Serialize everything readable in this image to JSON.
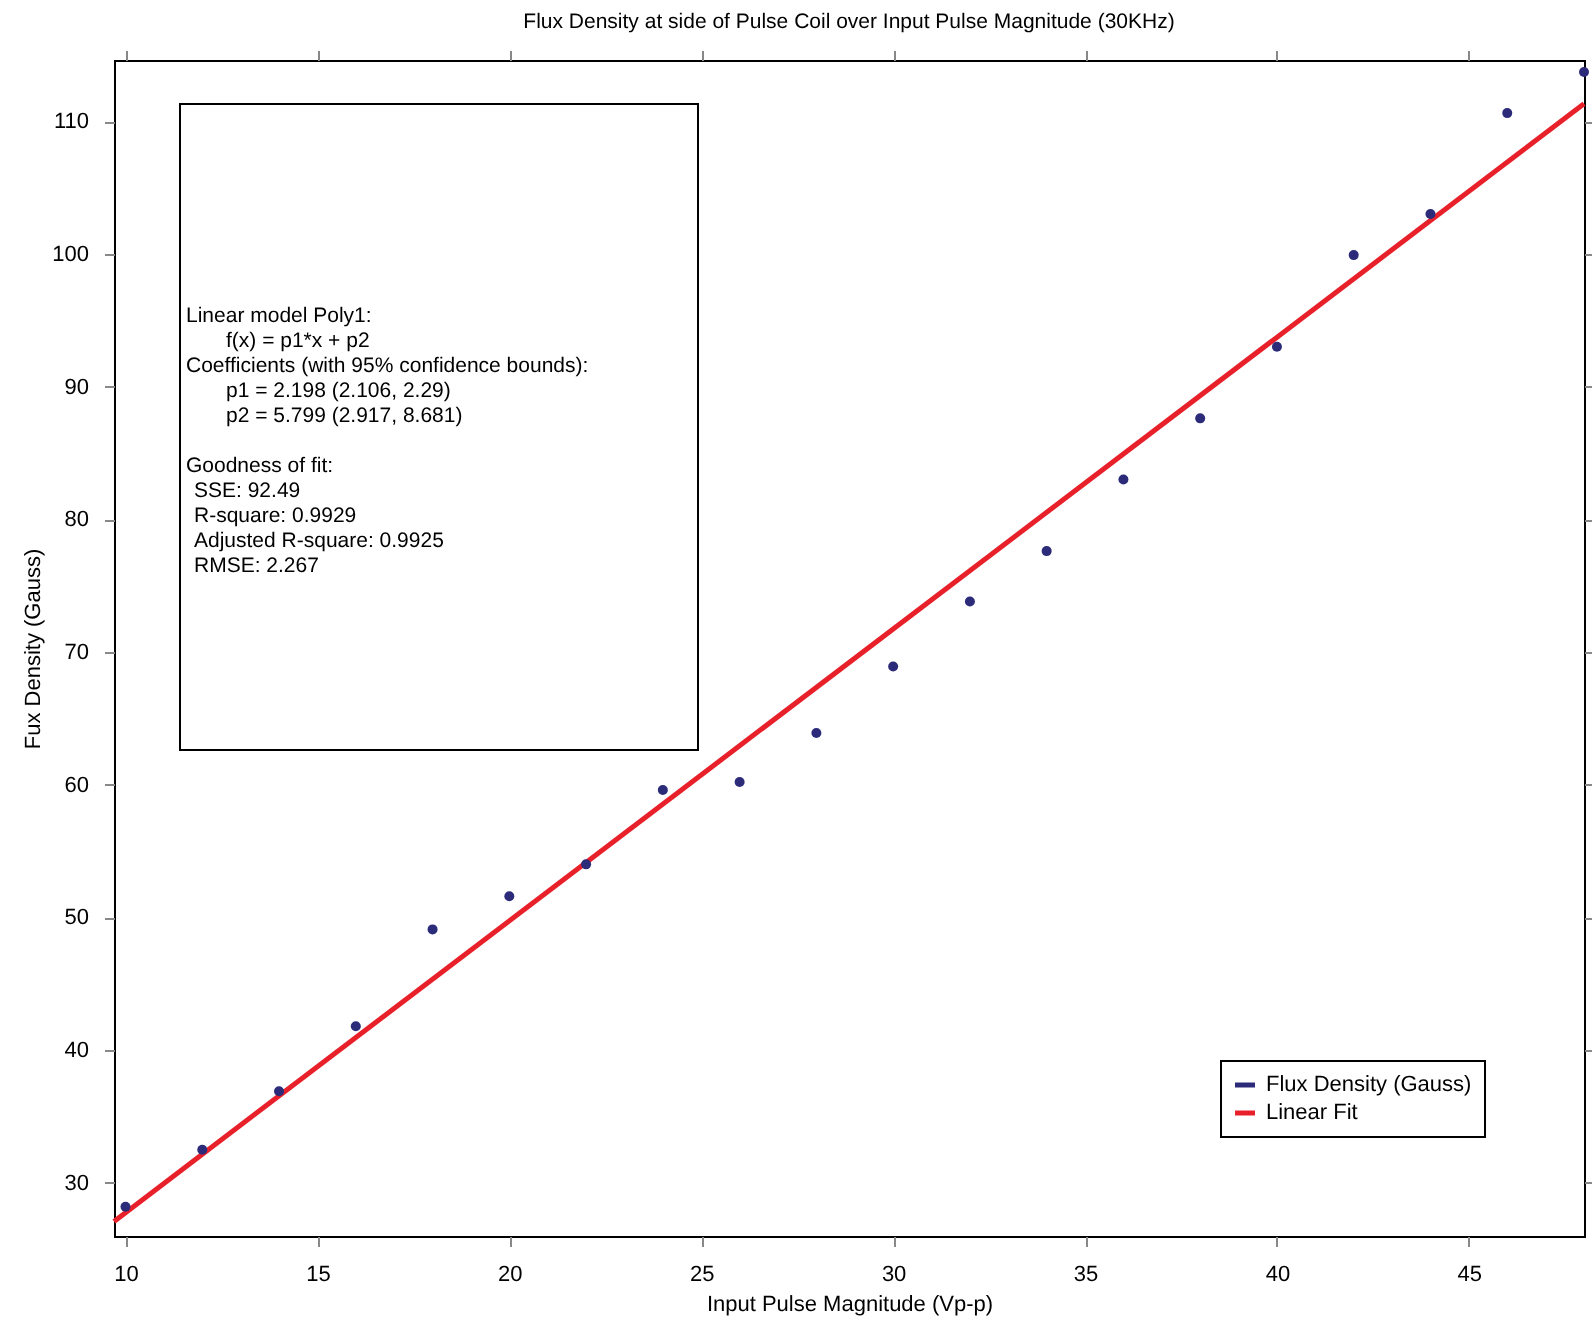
{
  "chart_data": {
    "type": "scatter",
    "title": "Flux Density at side of Pulse Coil over Input Pulse Magnitude (30KHz)",
    "xlabel": "Input Pulse Magnitude (Vp-p)",
    "ylabel": "Fux Density (Gauss)",
    "x": [
      10,
      12,
      14,
      16,
      18,
      20,
      22,
      24,
      26,
      28,
      30,
      32,
      34,
      36,
      38,
      40,
      42,
      44,
      46,
      48
    ],
    "series": [
      {
        "name": "Flux Density (Gauss)",
        "marker": "circle",
        "color": "#2b2b7a",
        "values": [
          28.2,
          32.5,
          36.9,
          41.8,
          49.1,
          51.6,
          54.0,
          59.6,
          60.2,
          63.9,
          68.9,
          73.8,
          77.6,
          83.0,
          87.6,
          93.0,
          99.9,
          103.0,
          110.6,
          113.7
        ]
      },
      {
        "name": "Linear Fit",
        "type": "line",
        "color": "#e8202a",
        "x": [
          9.7,
          48
        ],
        "values": [
          27.1,
          111.3
        ]
      }
    ],
    "xlim": [
      9.7,
      48
    ],
    "ylim": [
      26,
      114.6
    ],
    "xticks": [
      10,
      15,
      20,
      25,
      30,
      35,
      40,
      45
    ],
    "yticks": [
      30,
      40,
      50,
      60,
      70,
      80,
      90,
      100,
      110
    ],
    "grid": false,
    "legend": "bottom right",
    "annotations": [
      "Linear model Poly1:",
      "f(x) = p1*x + p2",
      "Coefficients (with 95% confidence bounds):",
      "p1 =      2.198  (2.106, 2.29)",
      "p2 =      5.799  (2.917, 8.681)",
      "Goodness of fit:",
      "SSE: 92.49",
      "R-square: 0.9929",
      "Adjusted R-square: 0.9925",
      "RMSE: 2.267"
    ]
  }
}
